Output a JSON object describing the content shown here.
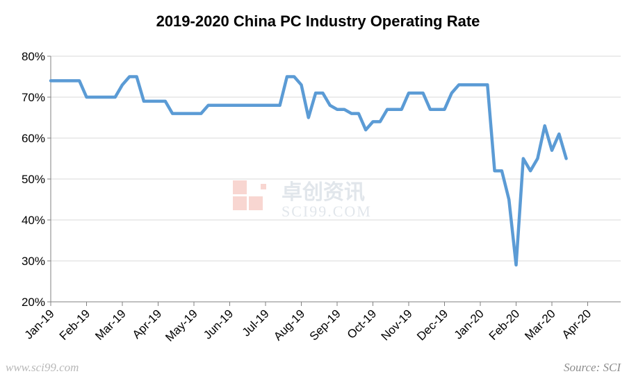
{
  "chart_data": {
    "type": "line",
    "title": "2019-2020 China PC Industry  Operating Rate",
    "xlabel": "",
    "ylabel": "",
    "ylim": [
      20,
      80
    ],
    "y_ticks": [
      "20%",
      "30%",
      "40%",
      "50%",
      "60%",
      "70%",
      "80%"
    ],
    "y_tick_values": [
      20,
      30,
      40,
      50,
      60,
      70,
      80
    ],
    "x_tick_labels": [
      "Jan-19",
      "Feb-19",
      "Mar-19",
      "Apr-19",
      "May-19",
      "Jun-19",
      "Jul-19",
      "Aug-19",
      "Sep-19",
      "Oct-19",
      "Nov-19",
      "Dec-19",
      "Jan-20",
      "Feb-20",
      "Mar-20",
      "Apr-20"
    ],
    "x_tick_week_index": [
      0,
      5,
      10,
      15,
      20,
      25,
      30,
      35,
      40,
      45,
      50,
      55,
      60,
      65,
      70,
      75
    ],
    "grid": true,
    "series": [
      {
        "name": "Operating Rate",
        "color": "#5b9bd5",
        "unit": "%",
        "values": [
          74,
          74,
          74,
          74,
          74,
          70,
          70,
          70,
          70,
          70,
          73,
          75,
          75,
          69,
          69,
          69,
          69,
          66,
          66,
          66,
          66,
          66,
          68,
          68,
          68,
          68,
          68,
          68,
          68,
          68,
          68,
          68,
          68,
          75,
          75,
          73,
          65,
          71,
          71,
          68,
          67,
          67,
          66,
          66,
          62,
          64,
          64,
          67,
          67,
          67,
          71,
          71,
          71,
          67,
          67,
          67,
          71,
          73,
          73,
          73,
          73,
          73,
          52,
          52,
          45,
          29,
          55,
          52,
          55,
          63,
          57,
          61,
          55
        ]
      }
    ]
  },
  "watermark": {
    "chinese": "卓创资讯",
    "latin": "SCI99.COM"
  },
  "footer": {
    "source": "Source: SCI",
    "site": "www.sci99.com"
  }
}
